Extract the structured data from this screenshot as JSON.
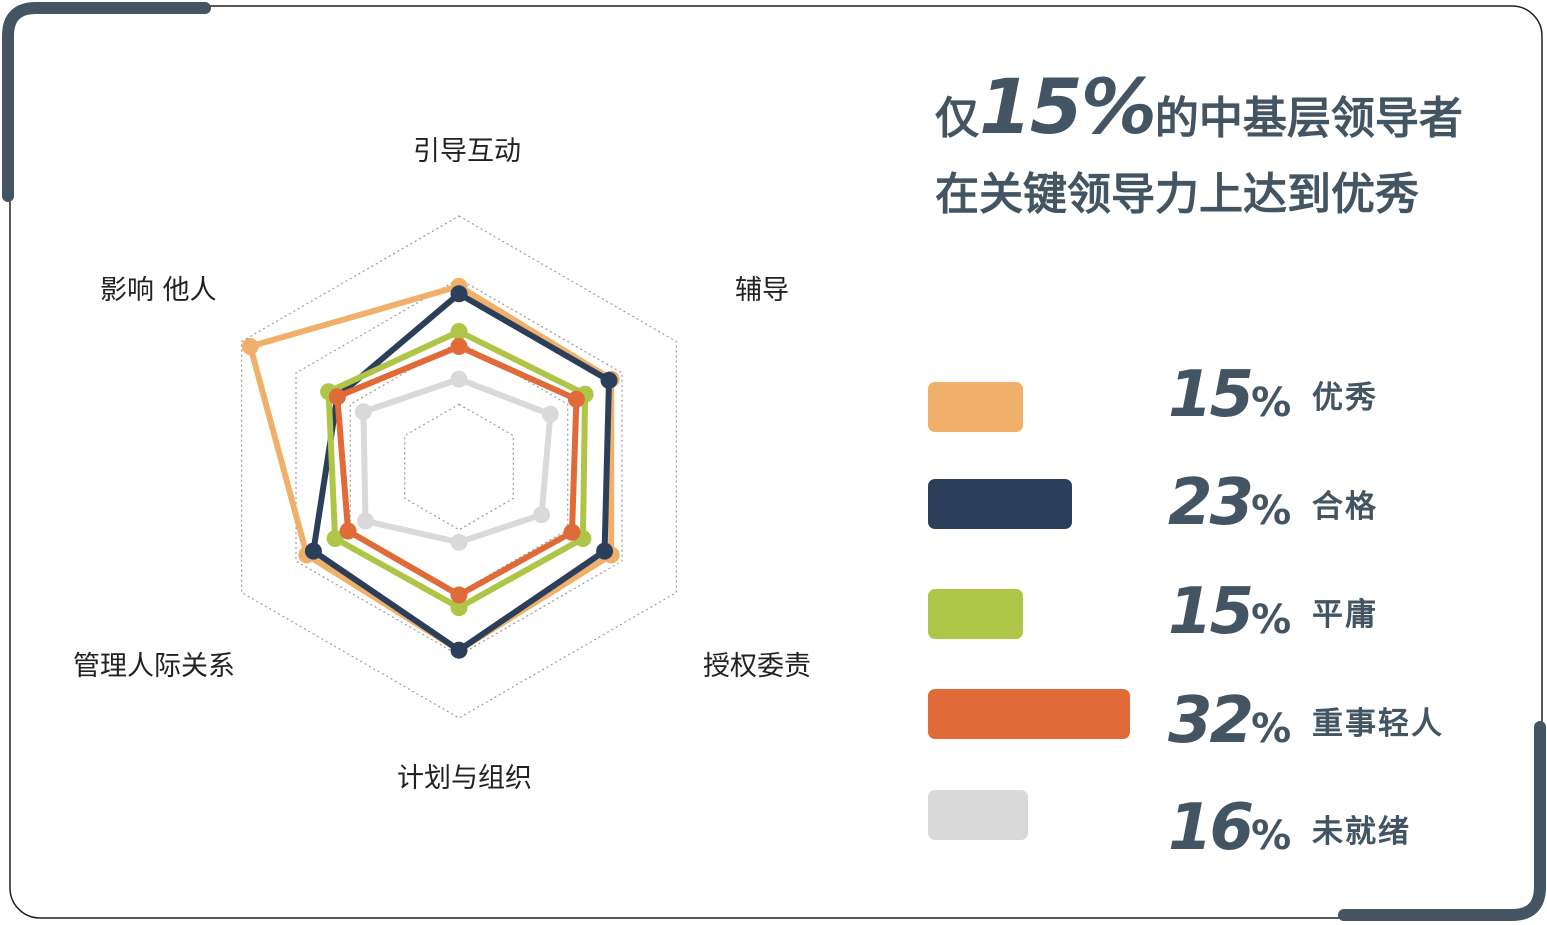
{
  "title": {
    "prefix": "仅",
    "highlight": "15%",
    "line1_rest": "的中基层领导者",
    "line2": "在关键领导力上达到优秀"
  },
  "chart_data": {
    "type": "radar",
    "axes": [
      "引导互动",
      "辅导",
      "授权委责",
      "计划与组织",
      "管理人际关系",
      "影响 他人"
    ],
    "rmax": 100,
    "grid_levels": [
      25,
      50,
      75,
      100
    ],
    "grid": "dotted",
    "series": [
      {
        "name": "优秀",
        "color": "#F0B06A",
        "values": [
          72,
          70,
          70,
          73,
          70,
          96
        ]
      },
      {
        "name": "合格",
        "color": "#2B3F5A",
        "values": [
          69,
          69,
          67,
          73,
          67,
          56
        ]
      },
      {
        "name": "平庸",
        "color": "#AFC547",
        "values": [
          54,
          58,
          57,
          56,
          57,
          60
        ]
      },
      {
        "name": "重事轻人",
        "color": "#E06A38",
        "values": [
          48,
          54,
          52,
          51,
          51,
          56
        ]
      },
      {
        "name": "未就绪",
        "color": "#D9D9D9",
        "values": [
          35,
          42,
          38,
          30,
          43,
          44
        ]
      }
    ]
  },
  "legend": [
    {
      "percent": "15",
      "symbol": "%",
      "label": "优秀",
      "color": "#F0B06A",
      "share": 15
    },
    {
      "percent": "23",
      "symbol": "%",
      "label": "合格",
      "color": "#2B3F5A",
      "share": 23
    },
    {
      "percent": "15",
      "symbol": "%",
      "label": "平庸",
      "color": "#AFC547",
      "share": 15
    },
    {
      "percent": "32",
      "symbol": "%",
      "label": "重事轻人",
      "color": "#E06A38",
      "share": 32
    },
    {
      "percent": "16",
      "symbol": "%",
      "label": "未就绪",
      "color": "#D9D9D9",
      "share": 16
    }
  ],
  "colors": {
    "frame": "#435563",
    "frame_thin": "#222222",
    "text_dark": "#435563"
  }
}
